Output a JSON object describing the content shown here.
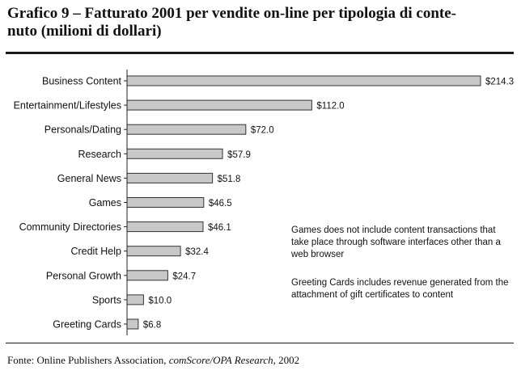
{
  "title_line1": "Grafico 9 – Fatturato 2001 per vendite on-line per tipologia di conte-",
  "title_line2": "nuto (milioni di dollari)",
  "chart_data": {
    "type": "bar",
    "orientation": "horizontal",
    "categories": [
      "Business Content",
      "Entertainment/Lifestyles",
      "Personals/Dating",
      "Research",
      "General News",
      "Games",
      "Community Directories",
      "Credit Help",
      "Personal Growth",
      "Sports",
      "Greeting Cards"
    ],
    "values": [
      214.3,
      112.0,
      72.0,
      57.9,
      51.8,
      46.5,
      46.1,
      32.4,
      24.7,
      10.0,
      6.8
    ],
    "value_labels": [
      "$214.3",
      "$112.0",
      "$72.0",
      "$57.9",
      "$51.8",
      "$46.5",
      "$46.1",
      "$32.4",
      "$24.7",
      "$10.0",
      "$6.8"
    ],
    "xlim": [
      0,
      214.3
    ],
    "grid": false,
    "bar_color": "#c8c8c8",
    "bar_edge_color": "#333333"
  },
  "notes": {
    "note1": "Games does not include content transactions that take place through software interfaces other than a web browser",
    "note2": "Greeting Cards includes revenue generated from the attachment of gift certificates to content"
  },
  "source": {
    "prefix": "Fonte: Online Publishers Association, ",
    "italic": "comScore/OPA Research",
    "suffix": ", 2002"
  }
}
